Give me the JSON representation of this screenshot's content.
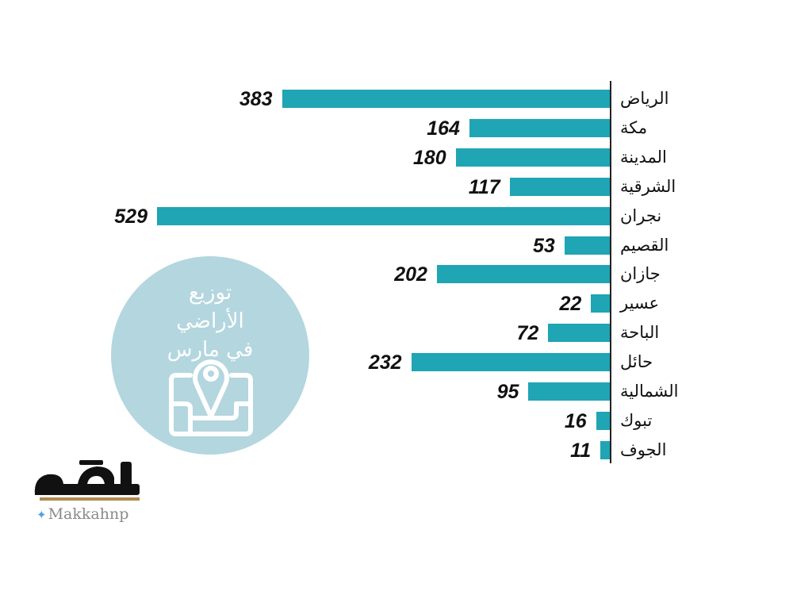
{
  "chart_data": {
    "type": "bar",
    "orientation": "horizontal",
    "title": "توزيع الأراضي في مارس",
    "categories": [
      "الرياض",
      "مكة",
      "المدينة",
      "الشرقية",
      "نجران",
      "القصيم",
      "جازان",
      "عسير",
      "الباحة",
      "حائل",
      "الشمالية",
      "تبوك",
      "الجوف"
    ],
    "values": [
      383,
      164,
      180,
      117,
      529,
      53,
      202,
      22,
      72,
      232,
      95,
      16,
      11
    ],
    "value_labels": [
      "383",
      "164",
      "180",
      "117",
      "529",
      "53",
      "202",
      "22",
      "72",
      "232",
      "95",
      "16",
      "11"
    ],
    "xlim": [
      0,
      529
    ],
    "grid": false,
    "legend": "none"
  },
  "badge": {
    "lines": [
      "توزيع",
      "الأراضي",
      "في مارس"
    ],
    "icon": "map-pin-icon"
  },
  "branding": {
    "logo_text": "مكة",
    "twitter_icon": "twitter-icon",
    "twitter_handle": "Makkahnp"
  },
  "colors": {
    "bar": "#1fa5b4",
    "badge_bg": "#b3d6df",
    "badge_fg": "#ffffff",
    "text": "#111111",
    "twitter": "#4fa3d9"
  }
}
